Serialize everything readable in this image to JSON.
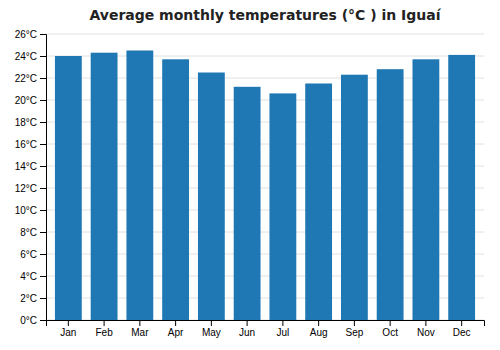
{
  "chart_data": {
    "type": "bar",
    "title": "Average monthly temperatures (°C ) in Iguaí",
    "categories": [
      "Jan",
      "Feb",
      "Mar",
      "Apr",
      "May",
      "Jun",
      "Jul",
      "Aug",
      "Sep",
      "Oct",
      "Nov",
      "Dec"
    ],
    "values": [
      24.0,
      24.3,
      24.5,
      23.7,
      22.5,
      21.2,
      20.6,
      21.5,
      22.3,
      22.8,
      23.7,
      24.1
    ],
    "ylim": [
      0,
      26
    ],
    "yticks": [
      {
        "value": 0,
        "label": "0°C"
      },
      {
        "value": 2,
        "label": "2°C"
      },
      {
        "value": 4,
        "label": "4°C"
      },
      {
        "value": 6,
        "label": "6°C"
      },
      {
        "value": 8,
        "label": "8°C"
      },
      {
        "value": 10,
        "label": "10°C"
      },
      {
        "value": 12,
        "label": "12°C"
      },
      {
        "value": 14,
        "label": "14°C"
      },
      {
        "value": 16,
        "label": "16°C"
      },
      {
        "value": 18,
        "label": "18°C"
      },
      {
        "value": 20,
        "label": "20°C"
      },
      {
        "value": 22,
        "label": "22°C"
      },
      {
        "value": 24,
        "label": "24°C"
      },
      {
        "value": 26,
        "label": "26°C"
      }
    ],
    "grid": true
  }
}
